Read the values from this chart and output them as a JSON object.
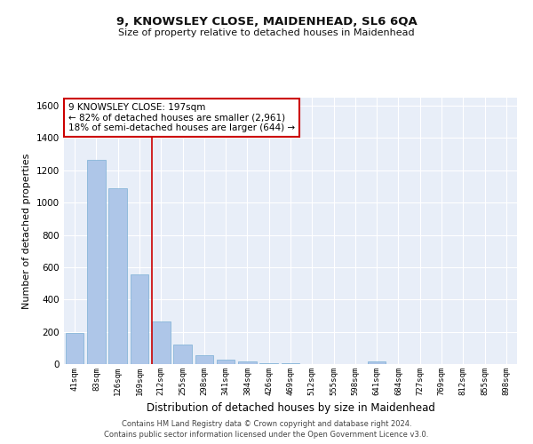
{
  "title1": "9, KNOWSLEY CLOSE, MAIDENHEAD, SL6 6QA",
  "title2": "Size of property relative to detached houses in Maidenhead",
  "xlabel": "Distribution of detached houses by size in Maidenhead",
  "ylabel": "Number of detached properties",
  "categories": [
    "41sqm",
    "83sqm",
    "126sqm",
    "169sqm",
    "212sqm",
    "255sqm",
    "298sqm",
    "341sqm",
    "384sqm",
    "426sqm",
    "469sqm",
    "512sqm",
    "555sqm",
    "598sqm",
    "641sqm",
    "684sqm",
    "727sqm",
    "769sqm",
    "812sqm",
    "855sqm",
    "898sqm"
  ],
  "values": [
    195,
    1265,
    1090,
    555,
    265,
    120,
    55,
    30,
    18,
    8,
    5,
    2,
    2,
    1,
    18,
    0,
    0,
    0,
    0,
    0,
    0
  ],
  "bar_color": "#aec6e8",
  "bar_edge_color": "#7aafd4",
  "vline_color": "#cc0000",
  "vline_x": 3.57,
  "ylim": [
    0,
    1650
  ],
  "yticks": [
    0,
    200,
    400,
    600,
    800,
    1000,
    1200,
    1400,
    1600
  ],
  "bg_color": "#e8eef8",
  "grid_color": "#ffffff",
  "fig_bg_color": "#ffffff",
  "property_label": "9 KNOWSLEY CLOSE: 197sqm",
  "annotation_line1": "← 82% of detached houses are smaller (2,961)",
  "annotation_line2": "18% of semi-detached houses are larger (644) →",
  "footer1": "Contains HM Land Registry data © Crown copyright and database right 2024.",
  "footer2": "Contains public sector information licensed under the Open Government Licence v3.0."
}
